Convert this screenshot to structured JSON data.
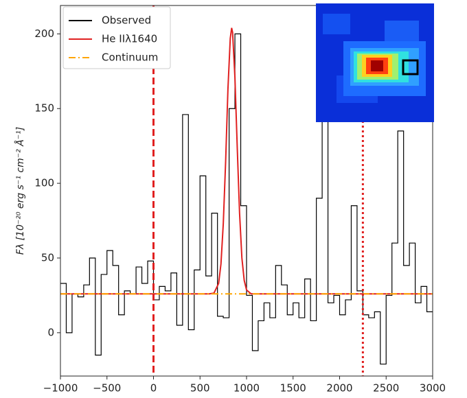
{
  "chart_data": {
    "type": "line",
    "y_label": "Fλ [10⁻²⁰ erg s⁻¹ cm⁻² Å⁻¹]",
    "xlim": [
      -1000,
      3000
    ],
    "ylim": [
      -29,
      219
    ],
    "xticks": [
      {
        "value": -1000,
        "label": "−1000"
      },
      {
        "value": -500,
        "label": "−500"
      },
      0,
      500,
      1000,
      1500,
      2000,
      2500,
      3000
    ],
    "yticks": [
      0,
      50,
      100,
      150,
      200
    ],
    "legend": "upper left",
    "series": [
      {
        "name": "Observed",
        "color": "#000000",
        "drawstyle": "steps-post",
        "x": [
          -1000,
          -937.5,
          -875,
          -812.5,
          -750,
          -687.5,
          -625,
          -562.5,
          -500,
          -437.5,
          -375,
          -312.5,
          -250,
          -187.5,
          -125,
          -62.5,
          0,
          62.5,
          125,
          187.5,
          250,
          312.5,
          375,
          437.5,
          500,
          562.5,
          625,
          687.5,
          750,
          812.5,
          875,
          937.5,
          1000,
          1062.5,
          1125,
          1187.5,
          1250,
          1312.5,
          1375,
          1437.5,
          1500,
          1562.5,
          1625,
          1687.5,
          1750,
          1812.5,
          1875,
          1937.5,
          2000,
          2062.5,
          2125,
          2187.5,
          2250,
          2312.5,
          2375,
          2437.5,
          2500,
          2562.5,
          2625,
          2687.5,
          2750,
          2812.5,
          2875,
          2937.5
        ],
        "values": [
          33,
          0,
          26,
          24,
          32,
          50,
          -15,
          39,
          55,
          45,
          12,
          28,
          26,
          44,
          33,
          48,
          22,
          31,
          28,
          40,
          5,
          146,
          2,
          42,
          105,
          38,
          80,
          11,
          10,
          150,
          200,
          85,
          25,
          -12,
          8,
          20,
          10,
          45,
          32,
          12,
          20,
          10,
          36,
          8,
          90,
          155,
          20,
          25,
          12,
          22,
          85,
          28,
          12,
          10,
          14,
          -21,
          25,
          60,
          135,
          45,
          60,
          20,
          31,
          14
        ]
      },
      {
        "name": "He IIλ1640",
        "color": "#e02020",
        "drawstyle": "line",
        "x": [
          -1000,
          600,
          650,
          700,
          725,
          750,
          775,
          800,
          825,
          840,
          850,
          875,
          900,
          925,
          950,
          975,
          1000,
          1050,
          1100,
          3000
        ],
        "values": [
          26,
          26,
          26.5,
          33,
          46,
          73,
          114,
          163,
          197,
          204,
          201,
          171,
          124,
          80,
          50,
          35,
          28.6,
          26,
          26,
          26
        ]
      },
      {
        "name": "Continuum",
        "color": "#ffa500",
        "drawstyle": "dashdot",
        "x": [
          -1000,
          3000
        ],
        "values": [
          26,
          26
        ]
      }
    ],
    "vlines": [
      {
        "x": 0,
        "color": "#e02020",
        "style": "dashed"
      },
      {
        "x": 2250,
        "color": "#e02020",
        "style": "dotted"
      }
    ]
  }
}
